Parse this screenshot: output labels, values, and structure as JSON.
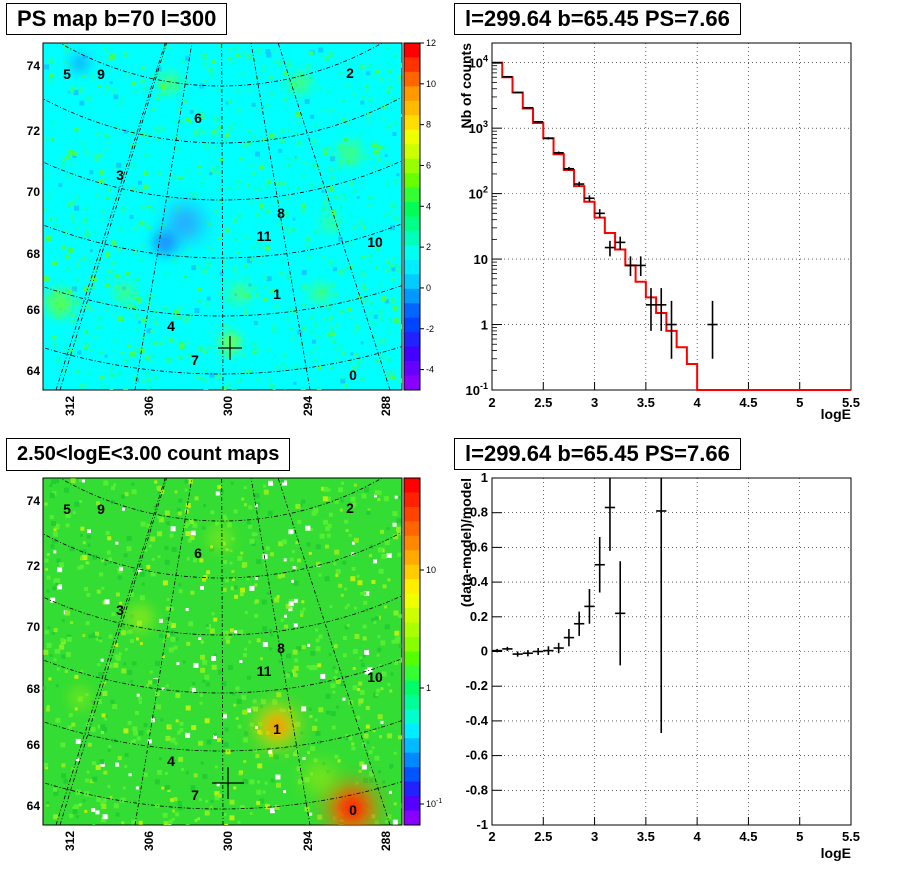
{
  "panels": {
    "ps_map": {
      "title": "PS map b=70 l=300"
    },
    "spectrum": {
      "title": "l=299.64 b=65.45 PS=7.66"
    },
    "count_map": {
      "title": "2.50<logE<3.00 count maps"
    },
    "residual": {
      "title": "l=299.64 b=65.45 PS=7.66"
    }
  },
  "colors": {
    "data": "#000000",
    "model": "#ff0000",
    "map_background": "#00ffff",
    "count_background": "#33dd33"
  },
  "chart_data": [
    {
      "type": "heatmap",
      "title": "PS map b=70 l=300",
      "x_tick_labels": [
        "312",
        "306",
        "300",
        "294",
        "288"
      ],
      "y_tick_labels": [
        "64",
        "66",
        "68",
        "70",
        "72",
        "74"
      ],
      "colorbar_tick_labels": [
        "12",
        "10",
        "8",
        "6",
        "4",
        "2",
        "0",
        "-2",
        "-4"
      ],
      "colorbar_range": [
        -5,
        12
      ],
      "sources": [
        {
          "label": "5"
        },
        {
          "label": "9"
        },
        {
          "label": "2"
        },
        {
          "label": "6"
        },
        {
          "label": "3"
        },
        {
          "label": "8"
        },
        {
          "label": "11"
        },
        {
          "label": "10"
        },
        {
          "label": "1"
        },
        {
          "label": "4"
        },
        {
          "label": "7"
        },
        {
          "label": "0"
        }
      ]
    },
    {
      "type": "line",
      "title": "l=299.64 b=65.45 PS=7.66",
      "xlabel": "logE",
      "ylabel": "Nb of counts",
      "xlim": [
        2,
        5.5
      ],
      "ylim": [
        0.1,
        20000
      ],
      "yscale": "log",
      "x_tick_labels": [
        "2",
        "2.5",
        "3",
        "3.5",
        "4",
        "4.5",
        "5",
        "5.5"
      ],
      "y_tick_labels": [
        "10^-1",
        "1",
        "10",
        "10^2",
        "10^3",
        "10^4"
      ],
      "grid": true,
      "series": [
        {
          "kind": "step",
          "x_edges": [
            2.0,
            2.1,
            2.2,
            2.3,
            2.4,
            2.5,
            2.6,
            2.7,
            2.8,
            2.9,
            3.0,
            3.1,
            3.2,
            3.3,
            3.4,
            3.5,
            3.6,
            3.7,
            3.8,
            3.9,
            4.0,
            5.5
          ],
          "values": [
            10000,
            6000,
            3500,
            2000,
            1200,
            700,
            400,
            230,
            130,
            75,
            43,
            25,
            14,
            8,
            4.5,
            2.6,
            1.5,
            0.8,
            0.45,
            0.25,
            0.1
          ]
        },
        {
          "kind": "errorbar",
          "x": [
            2.05,
            2.15,
            2.25,
            2.35,
            2.45,
            2.55,
            2.65,
            2.75,
            2.85,
            2.95,
            3.05,
            3.15,
            3.25,
            3.35,
            3.45,
            3.55,
            3.65,
            3.75,
            4.15
          ],
          "y": [
            10000,
            6100,
            3500,
            2050,
            1250,
            700,
            420,
            240,
            140,
            85,
            50,
            15,
            18,
            8,
            8,
            2,
            2,
            1,
            1
          ],
          "y_low": [
            9900,
            6000,
            3440,
            2000,
            1210,
            670,
            400,
            225,
            128,
            76,
            43,
            11,
            14,
            5.5,
            5.5,
            0.8,
            0.8,
            0.3,
            0.3
          ],
          "y_high": [
            10100,
            6180,
            3560,
            2100,
            1290,
            730,
            440,
            255,
            152,
            94,
            58,
            19,
            22,
            11,
            11,
            3.6,
            3.6,
            2.3,
            2.3
          ]
        }
      ]
    },
    {
      "type": "heatmap",
      "title": "2.50<logE<3.00 count maps",
      "x_tick_labels": [
        "312",
        "306",
        "300",
        "294",
        "288"
      ],
      "y_tick_labels": [
        "64",
        "66",
        "68",
        "70",
        "72",
        "74"
      ],
      "colorbar_tick_labels": [
        "10",
        "1",
        "10^-1"
      ],
      "colorbar_scale": "log",
      "sources": [
        {
          "label": "5"
        },
        {
          "label": "9"
        },
        {
          "label": "2"
        },
        {
          "label": "6"
        },
        {
          "label": "3"
        },
        {
          "label": "8"
        },
        {
          "label": "11"
        },
        {
          "label": "10"
        },
        {
          "label": "1"
        },
        {
          "label": "4"
        },
        {
          "label": "7"
        },
        {
          "label": "0"
        }
      ]
    },
    {
      "type": "scatter",
      "title": "l=299.64 b=65.45 PS=7.66",
      "xlabel": "logE",
      "ylabel": "(data-model)/model",
      "xlim": [
        2,
        5.5
      ],
      "ylim": [
        -1,
        1
      ],
      "x_tick_labels": [
        "2",
        "2.5",
        "3",
        "3.5",
        "4",
        "4.5",
        "5",
        "5.5"
      ],
      "y_tick_labels": [
        "-1",
        "-0.8",
        "-0.6",
        "-0.4",
        "-0.2",
        "0",
        "0.2",
        "0.4",
        "0.6",
        "0.8",
        "1"
      ],
      "grid": true,
      "series": [
        {
          "kind": "errorbar",
          "x": [
            2.05,
            2.15,
            2.25,
            2.35,
            2.45,
            2.55,
            2.65,
            2.75,
            2.85,
            2.95,
            3.05,
            3.15,
            3.25,
            3.65
          ],
          "y": [
            0.005,
            0.015,
            -0.015,
            -0.01,
            0.0,
            0.005,
            0.02,
            0.08,
            0.16,
            0.26,
            0.5,
            0.83,
            0.22,
            0.81
          ],
          "y_err": [
            0.01,
            0.012,
            0.015,
            0.018,
            0.02,
            0.025,
            0.03,
            0.05,
            0.07,
            0.1,
            0.16,
            0.25,
            0.3,
            1.28
          ]
        }
      ]
    }
  ]
}
